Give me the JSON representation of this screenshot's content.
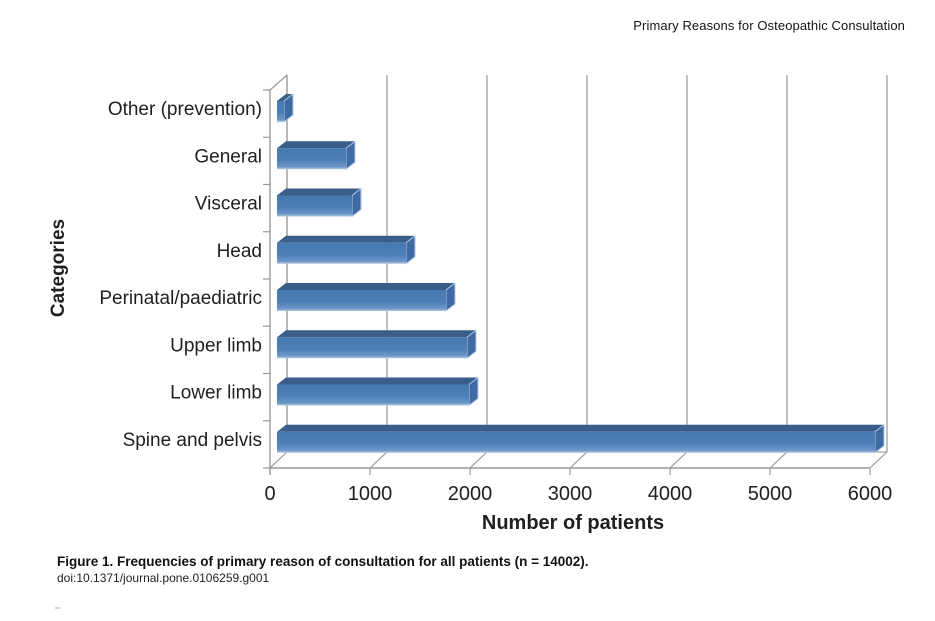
{
  "page": {
    "running_header": "Primary Reasons for Osteopathic Consultation"
  },
  "caption": {
    "title": "Figure 1. Frequencies of primary reason of consultation for all patients (n = 14002).",
    "doi": "doi:10.1371/journal.pone.0106259.g001"
  },
  "chart_data": {
    "type": "bar",
    "orientation": "horizontal",
    "style": "3d-excel",
    "title": "",
    "xlabel": "Number of patients",
    "ylabel": "Categories",
    "categories": [
      "Other (prevention)",
      "General",
      "Visceral",
      "Head",
      "Perinatal/paediatric",
      "Upper limb",
      "Lower limb",
      "Spine and pelvis"
    ],
    "category_order": "top-to-bottom as displayed",
    "values": [
      70,
      690,
      750,
      1290,
      1690,
      1900,
      1920,
      5980
    ],
    "x_ticks": [
      "0",
      "1000",
      "2000",
      "3000",
      "4000",
      "5000",
      "6000"
    ],
    "xlim": [
      0,
      6000
    ],
    "grid": "vertical",
    "legend": "none",
    "colors": {
      "bar_front": "#4d7eb8",
      "bar_top": "#3a5e8a",
      "bar_side": "#3f6ba5",
      "bar_highlight": "#b3c9e1",
      "grid_line": "#a6a6a6",
      "axis_line": "#999999",
      "text": "#1f1f1f"
    }
  }
}
